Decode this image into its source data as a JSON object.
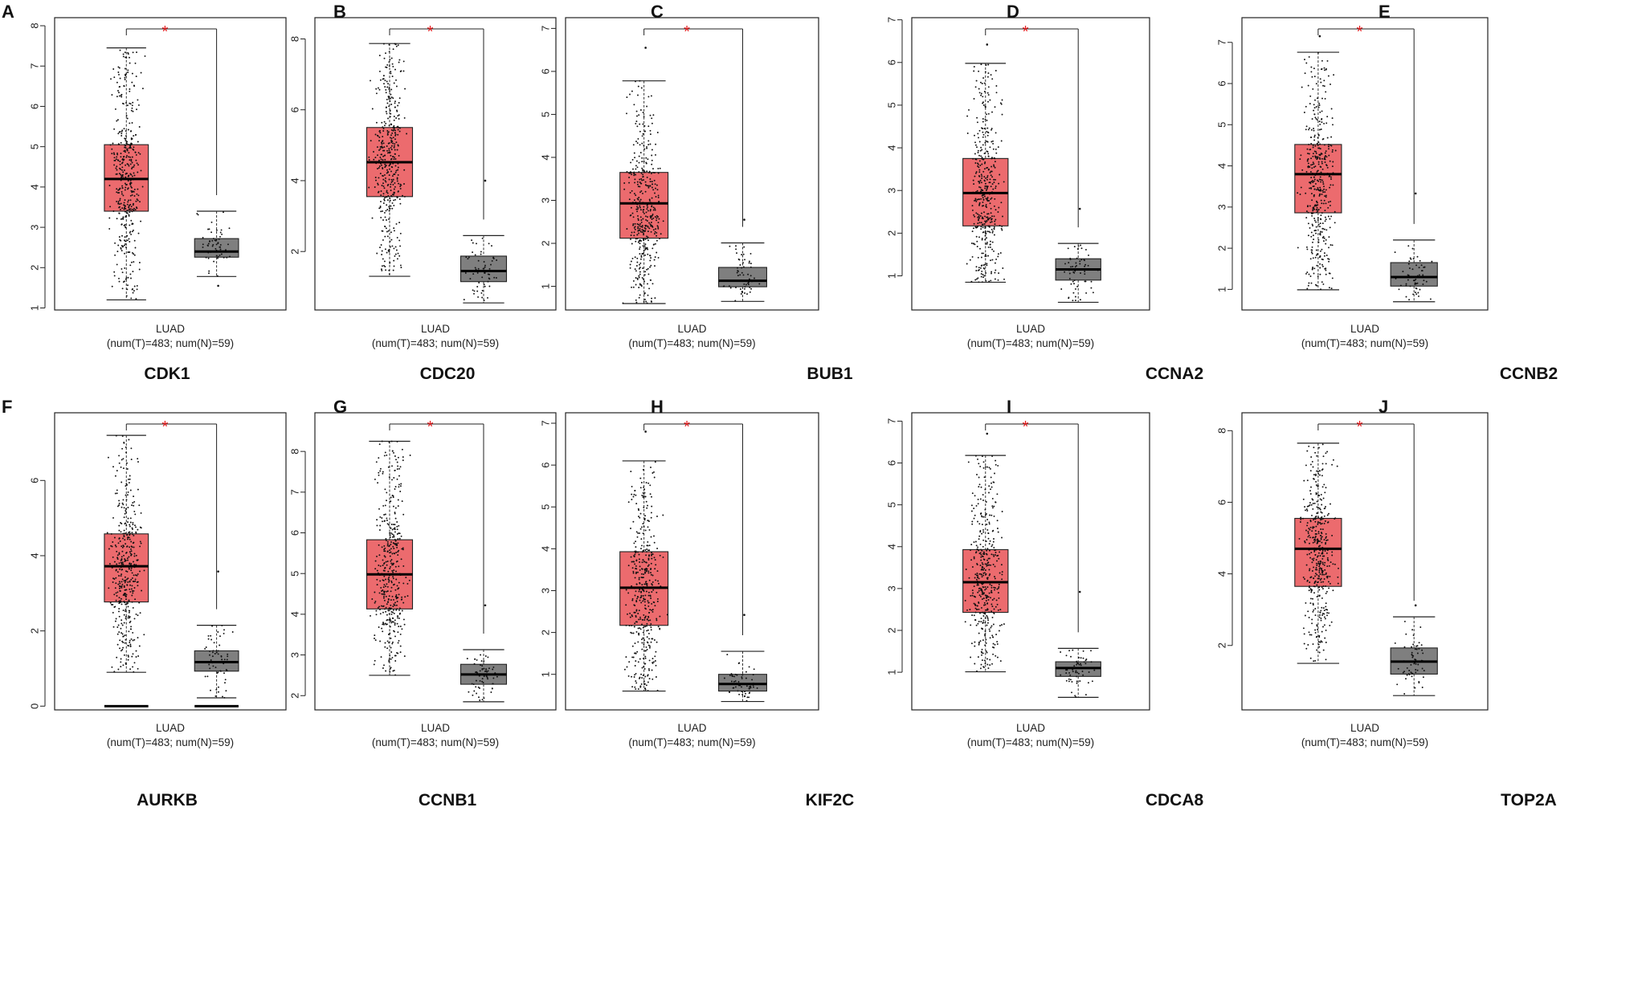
{
  "figure": {
    "title": ""
  },
  "colors": {
    "tumor": "#ec6b6e",
    "normal": "#7f7f7f",
    "star": "#e41a1c",
    "ink": "#000000"
  },
  "chart_data": [
    {
      "type": "box",
      "panel": "A",
      "gene": "CDK1",
      "cancer": "LUAD",
      "counts": "(num(T)=483; num(N)=59)",
      "significance": "*",
      "yticks": [
        1,
        2,
        3,
        4,
        5,
        6,
        7,
        8
      ],
      "ylim": [
        0.95,
        8.2
      ],
      "tumor": {
        "min": 1.2,
        "q1": 3.4,
        "median": 4.2,
        "q3": 5.05,
        "max": 7.45
      },
      "normal": {
        "min": 1.78,
        "q1": 2.26,
        "median": 2.4,
        "q3": 2.72,
        "max": 3.4,
        "outliers": [
          1.55
        ]
      }
    },
    {
      "type": "box",
      "panel": "B",
      "gene": "CDC20",
      "cancer": "LUAD",
      "counts": "(num(T)=483; num(N)=59)",
      "significance": "*",
      "yticks": [
        2,
        4,
        6,
        8
      ],
      "ylim": [
        0.35,
        8.6
      ],
      "tumor": {
        "min": 1.3,
        "q1": 3.55,
        "median": 4.52,
        "q3": 5.5,
        "max": 7.87
      },
      "normal": {
        "min": 0.55,
        "q1": 1.15,
        "median": 1.45,
        "q3": 1.87,
        "max": 2.45,
        "outliers": [
          4.0
        ]
      }
    },
    {
      "type": "box",
      "panel": "C",
      "gene": "BUB1",
      "cancer": "LUAD",
      "counts": "(num(T)=483; num(N)=59)",
      "significance": "*",
      "yticks": [
        1,
        2,
        3,
        4,
        5,
        6,
        7
      ],
      "ylim": [
        0.45,
        7.25
      ],
      "tumor": {
        "min": 0.6,
        "q1": 2.12,
        "median": 2.93,
        "q3": 3.65,
        "max": 5.78,
        "outliers": [
          6.55
        ]
      },
      "normal": {
        "min": 0.65,
        "q1": 0.99,
        "median": 1.13,
        "q3": 1.44,
        "max": 2.01,
        "outliers": [
          2.55
        ]
      }
    },
    {
      "type": "box",
      "panel": "D",
      "gene": "CCNA2",
      "cancer": "LUAD",
      "counts": "(num(T)=483; num(N)=59)",
      "significance": "*",
      "yticks": [
        1,
        2,
        3,
        4,
        5,
        6,
        7
      ],
      "ylim": [
        0.2,
        7.05
      ],
      "tumor": {
        "min": 0.85,
        "q1": 2.17,
        "median": 2.94,
        "q3": 3.75,
        "max": 5.98,
        "outliers": [
          6.42
        ]
      },
      "normal": {
        "min": 0.38,
        "q1": 0.9,
        "median": 1.15,
        "q3": 1.4,
        "max": 1.76,
        "outliers": [
          2.57
        ]
      }
    },
    {
      "type": "box",
      "panel": "E",
      "gene": "CCNB2",
      "cancer": "LUAD",
      "counts": "(num(T)=483; num(N)=59)",
      "significance": "*",
      "yticks": [
        1,
        2,
        3,
        4,
        5,
        6,
        7
      ],
      "ylim": [
        0.5,
        7.6
      ],
      "tumor": {
        "min": 0.99,
        "q1": 2.86,
        "median": 3.8,
        "q3": 4.52,
        "max": 6.76,
        "outliers": [
          7.15
        ]
      },
      "normal": {
        "min": 0.7,
        "q1": 1.08,
        "median": 1.3,
        "q3": 1.65,
        "max": 2.2,
        "outliers": [
          3.33
        ]
      }
    },
    {
      "type": "box",
      "panel": "F",
      "gene": "AURKB",
      "cancer": "LUAD",
      "counts": "(num(T)=483; num(N)=59)",
      "significance": "*",
      "yticks": [
        0,
        2,
        4,
        6
      ],
      "ylim": [
        -0.1,
        7.8
      ],
      "zero_line": true,
      "tumor": {
        "min": 0.9,
        "q1": 2.77,
        "median": 3.72,
        "q3": 4.58,
        "max": 7.2
      },
      "normal": {
        "min": 0.22,
        "q1": 0.93,
        "median": 1.17,
        "q3": 1.47,
        "max": 2.15,
        "outliers": [
          3.58
        ]
      }
    },
    {
      "type": "box",
      "panel": "G",
      "gene": "CCNB1",
      "cancer": "LUAD",
      "counts": "(num(T)=483; num(N)=59)",
      "significance": "*",
      "yticks": [
        2,
        3,
        4,
        5,
        6,
        7,
        8
      ],
      "ylim": [
        1.65,
        8.95
      ],
      "tumor": {
        "min": 2.5,
        "q1": 4.13,
        "median": 4.98,
        "q3": 5.83,
        "max": 8.25
      },
      "normal": {
        "min": 1.85,
        "q1": 2.28,
        "median": 2.52,
        "q3": 2.77,
        "max": 3.13,
        "outliers": [
          4.22
        ]
      }
    },
    {
      "type": "box",
      "panel": "H",
      "gene": "KIF2C",
      "cancer": "LUAD",
      "counts": "(num(T)=483; num(N)=59)",
      "significance": "*",
      "yticks": [
        1,
        2,
        3,
        4,
        5,
        6,
        7
      ],
      "ylim": [
        0.15,
        7.25
      ],
      "tumor": {
        "min": 0.6,
        "q1": 2.17,
        "median": 3.07,
        "q3": 3.93,
        "max": 6.1,
        "outliers": [
          6.8
        ]
      },
      "normal": {
        "min": 0.35,
        "q1": 0.6,
        "median": 0.77,
        "q3": 1.0,
        "max": 1.55,
        "outliers": [
          2.42
        ]
      }
    },
    {
      "type": "box",
      "panel": "I",
      "gene": "CDCA8",
      "cancer": "LUAD",
      "counts": "(num(T)=483; num(N)=59)",
      "significance": "*",
      "yticks": [
        1,
        2,
        3,
        4,
        5,
        6,
        7
      ],
      "ylim": [
        0.1,
        7.2
      ],
      "tumor": {
        "min": 1.01,
        "q1": 2.43,
        "median": 3.15,
        "q3": 3.93,
        "max": 6.18,
        "outliers": [
          6.7
        ]
      },
      "normal": {
        "min": 0.4,
        "q1": 0.9,
        "median": 1.1,
        "q3": 1.25,
        "max": 1.57,
        "outliers": [
          2.92
        ]
      }
    },
    {
      "type": "box",
      "panel": "J",
      "gene": "TOP2A",
      "cancer": "LUAD",
      "counts": "(num(T)=483; num(N)=59)",
      "significance": "*",
      "yticks": [
        2,
        4,
        6,
        8
      ],
      "ylim": [
        0.2,
        8.5
      ],
      "tumor": {
        "min": 1.5,
        "q1": 3.65,
        "median": 4.7,
        "q3": 5.55,
        "max": 7.65
      },
      "normal": {
        "min": 0.6,
        "q1": 1.2,
        "median": 1.55,
        "q3": 1.93,
        "max": 2.8,
        "outliers": [
          3.12
        ]
      }
    }
  ]
}
